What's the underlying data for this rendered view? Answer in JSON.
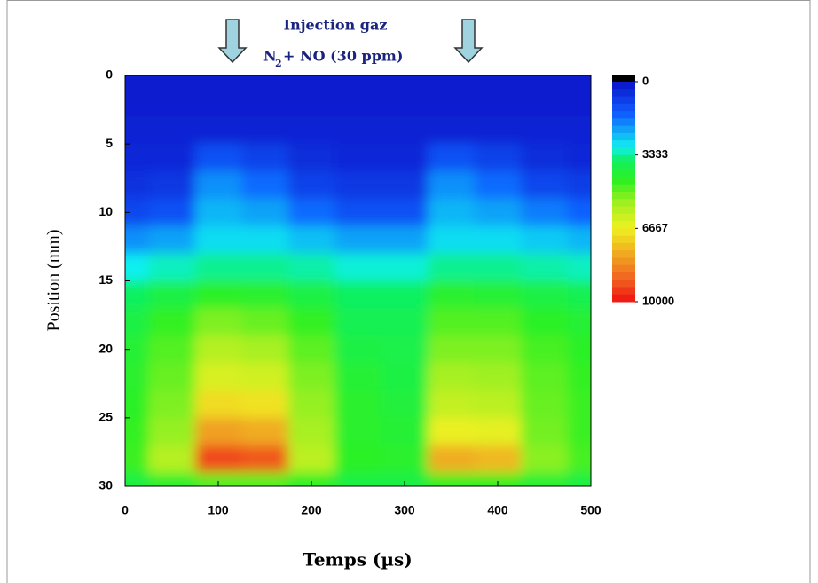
{
  "chart_data": {
    "type": "heatmap",
    "annotation": {
      "line1": "Injection gaz",
      "line2": {
        "main": "N",
        "sub": "2",
        "rest": "+ NO (30 ppm)"
      }
    },
    "x_label": "Temps (µs)",
    "y_label": "Position (mm)",
    "xlim": [
      0,
      500
    ],
    "xticks": [
      0,
      100,
      200,
      300,
      400,
      500
    ],
    "ylim": [
      30,
      0
    ],
    "yticks": [
      0,
      5,
      10,
      15,
      20,
      25,
      30
    ],
    "x": [
      0,
      50,
      100,
      150,
      200,
      250,
      300,
      350,
      400,
      450,
      500
    ],
    "y": [
      0,
      2,
      4,
      6,
      8,
      10,
      12,
      14,
      16,
      18,
      20,
      22,
      24,
      26,
      28,
      30
    ],
    "z": [
      [
        200,
        200,
        200,
        200,
        200,
        200,
        200,
        200,
        200,
        200,
        200
      ],
      [
        200,
        200,
        200,
        200,
        200,
        200,
        200,
        200,
        200,
        200,
        200
      ],
      [
        300,
        300,
        300,
        300,
        300,
        300,
        300,
        300,
        300,
        300,
        300
      ],
      [
        400,
        400,
        1200,
        900,
        500,
        400,
        400,
        1200,
        900,
        500,
        400
      ],
      [
        600,
        700,
        2000,
        1600,
        900,
        700,
        700,
        2000,
        1600,
        1000,
        800
      ],
      [
        1000,
        1200,
        2400,
        2200,
        1600,
        1200,
        1200,
        2400,
        2200,
        1800,
        1500
      ],
      [
        2000,
        2200,
        2800,
        2800,
        2500,
        2200,
        2200,
        2800,
        2800,
        2600,
        2400
      ],
      [
        3000,
        3200,
        3400,
        3400,
        3300,
        3100,
        3100,
        3400,
        3400,
        3300,
        3200
      ],
      [
        3600,
        4000,
        4400,
        4300,
        4000,
        3600,
        3600,
        4300,
        4200,
        4000,
        3800
      ],
      [
        4000,
        4500,
        5200,
        5000,
        4500,
        3800,
        3800,
        4800,
        4800,
        4400,
        4200
      ],
      [
        4200,
        4800,
        5800,
        5600,
        4900,
        4000,
        3900,
        5200,
        5200,
        4700,
        4400
      ],
      [
        4300,
        5000,
        6300,
        6200,
        5200,
        4200,
        4000,
        5600,
        5500,
        4900,
        4500
      ],
      [
        4400,
        5200,
        7000,
        6900,
        5400,
        4300,
        4100,
        6000,
        5900,
        5000,
        4600
      ],
      [
        4500,
        5400,
        8000,
        7800,
        5600,
        4300,
        4200,
        6600,
        6500,
        5100,
        4600
      ],
      [
        4600,
        5800,
        9300,
        9100,
        5900,
        4400,
        4300,
        7800,
        7600,
        5300,
        4700
      ],
      [
        4000,
        4300,
        4800,
        4800,
        4400,
        4000,
        4000,
        4500,
        4500,
        4200,
        4000
      ]
    ],
    "zlim": [
      0,
      10000
    ],
    "colorbar_ticks": [
      0,
      3333,
      6667,
      10000
    ],
    "colorscale": [
      [
        0,
        "#0a14c8"
      ],
      [
        1500,
        "#1060ff"
      ],
      [
        3000,
        "#10f0f0"
      ],
      [
        3600,
        "#10f060"
      ],
      [
        4500,
        "#30f020"
      ],
      [
        5500,
        "#a0f020"
      ],
      [
        6667,
        "#f0f020"
      ],
      [
        8000,
        "#f0a020"
      ],
      [
        9000,
        "#f06020"
      ],
      [
        10000,
        "#f01010"
      ]
    ]
  }
}
